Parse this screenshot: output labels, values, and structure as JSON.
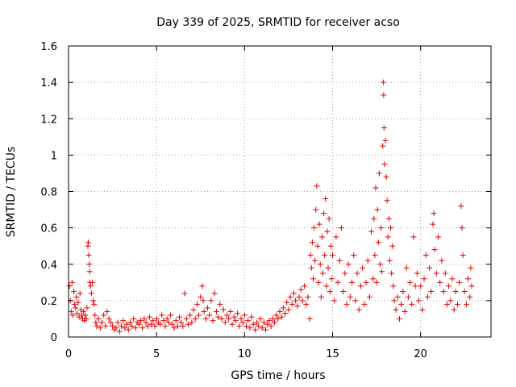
{
  "chart_data": {
    "type": "scatter",
    "title": "Day 339 of 2025, SRMTID for receiver acso",
    "xlabel": "GPS time / hours",
    "ylabel": "SRMTID / TECUs",
    "xlim": [
      0,
      24
    ],
    "ylim": [
      0,
      1.6
    ],
    "xticks": [
      0,
      5,
      10,
      15,
      20
    ],
    "xtick_labels": [
      "0",
      "5",
      "10",
      "15",
      "20"
    ],
    "yticks": [
      0,
      0.2,
      0.4,
      0.6,
      0.8,
      1.0,
      1.2,
      1.4,
      1.6
    ],
    "ytick_labels": [
      "0",
      "0.2",
      "0.4",
      "0.6",
      "0.8",
      "1",
      "1.2",
      "1.4",
      "1.6"
    ],
    "grid": true,
    "marker": "+",
    "color": "#e00000",
    "series": [
      {
        "name": "SRMTID",
        "points": [
          [
            0.05,
            0.28
          ],
          [
            0.1,
            0.2
          ],
          [
            0.15,
            0.14
          ],
          [
            0.2,
            0.3
          ],
          [
            0.25,
            0.12
          ],
          [
            0.3,
            0.25
          ],
          [
            0.35,
            0.18
          ],
          [
            0.4,
            0.16
          ],
          [
            0.45,
            0.22
          ],
          [
            0.5,
            0.13
          ],
          [
            0.55,
            0.19
          ],
          [
            0.6,
            0.11
          ],
          [
            0.65,
            0.24
          ],
          [
            0.7,
            0.15
          ],
          [
            0.75,
            0.12
          ],
          [
            0.8,
            0.1
          ],
          [
            0.85,
            0.14
          ],
          [
            0.9,
            0.09
          ],
          [
            0.95,
            0.12
          ],
          [
            1.0,
            0.1
          ],
          [
            1.05,
            0.16
          ],
          [
            1.1,
            0.5
          ],
          [
            1.12,
            0.52
          ],
          [
            1.15,
            0.45
          ],
          [
            1.18,
            0.4
          ],
          [
            1.2,
            0.36
          ],
          [
            1.22,
            0.3
          ],
          [
            1.25,
            0.28
          ],
          [
            1.3,
            0.24
          ],
          [
            1.35,
            0.3
          ],
          [
            1.4,
            0.2
          ],
          [
            1.45,
            0.18
          ],
          [
            1.5,
            0.12
          ],
          [
            1.55,
            0.08
          ],
          [
            1.6,
            0.06
          ],
          [
            1.7,
            0.1
          ],
          [
            1.8,
            0.05
          ],
          [
            1.9,
            0.08
          ],
          [
            2.0,
            0.12
          ],
          [
            2.1,
            0.06
          ],
          [
            2.2,
            0.14
          ],
          [
            2.3,
            0.1
          ],
          [
            2.4,
            0.08
          ],
          [
            2.5,
            0.06
          ],
          [
            2.6,
            0.04
          ],
          [
            2.7,
            0.05
          ],
          [
            2.8,
            0.08
          ],
          [
            2.9,
            0.03
          ],
          [
            3.0,
            0.06
          ],
          [
            3.1,
            0.09
          ],
          [
            3.2,
            0.05
          ],
          [
            3.3,
            0.07
          ],
          [
            3.4,
            0.04
          ],
          [
            3.5,
            0.08
          ],
          [
            3.6,
            0.06
          ],
          [
            3.7,
            0.1
          ],
          [
            3.8,
            0.05
          ],
          [
            3.9,
            0.08
          ],
          [
            4.0,
            0.07
          ],
          [
            4.1,
            0.09
          ],
          [
            4.2,
            0.05
          ],
          [
            4.3,
            0.1
          ],
          [
            4.4,
            0.08
          ],
          [
            4.5,
            0.06
          ],
          [
            4.6,
            0.11
          ],
          [
            4.7,
            0.07
          ],
          [
            4.8,
            0.09
          ],
          [
            4.9,
            0.06
          ],
          [
            5.0,
            0.1
          ],
          [
            5.1,
            0.08
          ],
          [
            5.2,
            0.07
          ],
          [
            5.3,
            0.12
          ],
          [
            5.4,
            0.09
          ],
          [
            5.5,
            0.06
          ],
          [
            5.6,
            0.1
          ],
          [
            5.7,
            0.08
          ],
          [
            5.8,
            0.12
          ],
          [
            5.9,
            0.07
          ],
          [
            6.0,
            0.05
          ],
          [
            6.1,
            0.09
          ],
          [
            6.2,
            0.06
          ],
          [
            6.3,
            0.11
          ],
          [
            6.4,
            0.08
          ],
          [
            6.5,
            0.06
          ],
          [
            6.6,
            0.24
          ],
          [
            6.7,
            0.1
          ],
          [
            6.8,
            0.07
          ],
          [
            6.9,
            0.12
          ],
          [
            7.0,
            0.08
          ],
          [
            7.1,
            0.15
          ],
          [
            7.2,
            0.1
          ],
          [
            7.3,
            0.18
          ],
          [
            7.4,
            0.12
          ],
          [
            7.5,
            0.22
          ],
          [
            7.6,
            0.28
          ],
          [
            7.65,
            0.2
          ],
          [
            7.7,
            0.14
          ],
          [
            7.8,
            0.1
          ],
          [
            7.9,
            0.16
          ],
          [
            8.0,
            0.12
          ],
          [
            8.1,
            0.2
          ],
          [
            8.2,
            0.09
          ],
          [
            8.3,
            0.24
          ],
          [
            8.4,
            0.14
          ],
          [
            8.5,
            0.11
          ],
          [
            8.6,
            0.18
          ],
          [
            8.7,
            0.1
          ],
          [
            8.8,
            0.15
          ],
          [
            8.9,
            0.08
          ],
          [
            9.0,
            0.12
          ],
          [
            9.1,
            0.1
          ],
          [
            9.2,
            0.14
          ],
          [
            9.3,
            0.07
          ],
          [
            9.4,
            0.11
          ],
          [
            9.5,
            0.09
          ],
          [
            9.6,
            0.13
          ],
          [
            9.7,
            0.06
          ],
          [
            9.8,
            0.1
          ],
          [
            9.9,
            0.08
          ],
          [
            10.0,
            0.12
          ],
          [
            10.1,
            0.06
          ],
          [
            10.2,
            0.09
          ],
          [
            10.3,
            0.05
          ],
          [
            10.4,
            0.11
          ],
          [
            10.5,
            0.07
          ],
          [
            10.6,
            0.04
          ],
          [
            10.7,
            0.08
          ],
          [
            10.8,
            0.06
          ],
          [
            10.9,
            0.1
          ],
          [
            11.0,
            0.05
          ],
          [
            11.1,
            0.08
          ],
          [
            11.2,
            0.04
          ],
          [
            11.3,
            0.07
          ],
          [
            11.4,
            0.09
          ],
          [
            11.5,
            0.06
          ],
          [
            11.6,
            0.1
          ],
          [
            11.7,
            0.08
          ],
          [
            11.8,
            0.12
          ],
          [
            11.9,
            0.1
          ],
          [
            12.0,
            0.14
          ],
          [
            12.1,
            0.11
          ],
          [
            12.2,
            0.16
          ],
          [
            12.3,
            0.13
          ],
          [
            12.4,
            0.19
          ],
          [
            12.5,
            0.15
          ],
          [
            12.6,
            0.22
          ],
          [
            12.7,
            0.18
          ],
          [
            12.8,
            0.24
          ],
          [
            12.9,
            0.2
          ],
          [
            13.0,
            0.17
          ],
          [
            13.1,
            0.22
          ],
          [
            13.2,
            0.26
          ],
          [
            13.3,
            0.2
          ],
          [
            13.4,
            0.28
          ],
          [
            13.5,
            0.18
          ],
          [
            13.6,
            0.22
          ],
          [
            13.7,
            0.1
          ],
          [
            13.75,
            0.45
          ],
          [
            13.8,
            0.38
          ],
          [
            13.85,
            0.52
          ],
          [
            13.9,
            0.32
          ],
          [
            13.95,
            0.6
          ],
          [
            14.0,
            0.42
          ],
          [
            14.05,
            0.7
          ],
          [
            14.1,
            0.83
          ],
          [
            14.15,
            0.5
          ],
          [
            14.2,
            0.3
          ],
          [
            14.25,
            0.62
          ],
          [
            14.3,
            0.4
          ],
          [
            14.35,
            0.22
          ],
          [
            14.4,
            0.55
          ],
          [
            14.45,
            0.35
          ],
          [
            14.5,
            0.68
          ],
          [
            14.55,
            0.45
          ],
          [
            14.6,
            0.76
          ],
          [
            14.65,
            0.28
          ],
          [
            14.7,
            0.58
          ],
          [
            14.75,
            0.38
          ],
          [
            14.8,
            0.65
          ],
          [
            14.85,
            0.25
          ],
          [
            14.9,
            0.5
          ],
          [
            14.95,
            0.32
          ],
          [
            15.0,
            0.45
          ],
          [
            15.1,
            0.2
          ],
          [
            15.2,
            0.55
          ],
          [
            15.3,
            0.3
          ],
          [
            15.4,
            0.42
          ],
          [
            15.5,
            0.6
          ],
          [
            15.6,
            0.25
          ],
          [
            15.7,
            0.35
          ],
          [
            15.8,
            0.18
          ],
          [
            15.9,
            0.4
          ],
          [
            16.0,
            0.22
          ],
          [
            16.1,
            0.3
          ],
          [
            16.2,
            0.45
          ],
          [
            16.3,
            0.2
          ],
          [
            16.4,
            0.35
          ],
          [
            16.5,
            0.15
          ],
          [
            16.6,
            0.28
          ],
          [
            16.7,
            0.38
          ],
          [
            16.8,
            0.18
          ],
          [
            16.9,
            0.3
          ],
          [
            17.0,
            0.42
          ],
          [
            17.1,
            0.22
          ],
          [
            17.2,
            0.58
          ],
          [
            17.3,
            0.32
          ],
          [
            17.35,
            0.65
          ],
          [
            17.4,
            0.45
          ],
          [
            17.45,
            0.82
          ],
          [
            17.5,
            0.3
          ],
          [
            17.55,
            0.7
          ],
          [
            17.6,
            0.52
          ],
          [
            17.65,
            0.9
          ],
          [
            17.7,
            0.4
          ],
          [
            17.75,
            0.6
          ],
          [
            17.8,
            0.36
          ],
          [
            17.85,
            1.05
          ],
          [
            17.88,
            1.4
          ],
          [
            17.9,
            1.33
          ],
          [
            17.92,
            1.15
          ],
          [
            17.95,
            0.95
          ],
          [
            18.0,
            1.08
          ],
          [
            18.05,
            0.88
          ],
          [
            18.1,
            0.75
          ],
          [
            18.15,
            0.55
          ],
          [
            18.2,
            0.65
          ],
          [
            18.25,
            0.42
          ],
          [
            18.3,
            0.6
          ],
          [
            18.35,
            0.35
          ],
          [
            18.4,
            0.5
          ],
          [
            18.45,
            0.28
          ],
          [
            18.5,
            0.2
          ],
          [
            18.6,
            0.15
          ],
          [
            18.7,
            0.22
          ],
          [
            18.8,
            0.1
          ],
          [
            18.9,
            0.18
          ],
          [
            19.0,
            0.25
          ],
          [
            19.1,
            0.14
          ],
          [
            19.2,
            0.38
          ],
          [
            19.3,
            0.22
          ],
          [
            19.4,
            0.3
          ],
          [
            19.5,
            0.18
          ],
          [
            19.6,
            0.55
          ],
          [
            19.7,
            0.28
          ],
          [
            19.8,
            0.35
          ],
          [
            19.9,
            0.2
          ],
          [
            20.0,
            0.28
          ],
          [
            20.1,
            0.15
          ],
          [
            20.2,
            0.32
          ],
          [
            20.3,
            0.45
          ],
          [
            20.4,
            0.22
          ],
          [
            20.5,
            0.38
          ],
          [
            20.6,
            0.25
          ],
          [
            20.7,
            0.62
          ],
          [
            20.75,
            0.68
          ],
          [
            20.8,
            0.48
          ],
          [
            20.9,
            0.35
          ],
          [
            21.0,
            0.55
          ],
          [
            21.1,
            0.3
          ],
          [
            21.2,
            0.42
          ],
          [
            21.3,
            0.25
          ],
          [
            21.4,
            0.35
          ],
          [
            21.5,
            0.18
          ],
          [
            21.6,
            0.28
          ],
          [
            21.7,
            0.2
          ],
          [
            21.8,
            0.32
          ],
          [
            21.9,
            0.15
          ],
          [
            22.0,
            0.25
          ],
          [
            22.1,
            0.18
          ],
          [
            22.2,
            0.3
          ],
          [
            22.3,
            0.72
          ],
          [
            22.35,
            0.6
          ],
          [
            22.4,
            0.45
          ],
          [
            22.5,
            0.25
          ],
          [
            22.6,
            0.18
          ],
          [
            22.7,
            0.32
          ],
          [
            22.8,
            0.22
          ],
          [
            22.85,
            0.38
          ],
          [
            22.9,
            0.28
          ]
        ]
      }
    ]
  }
}
